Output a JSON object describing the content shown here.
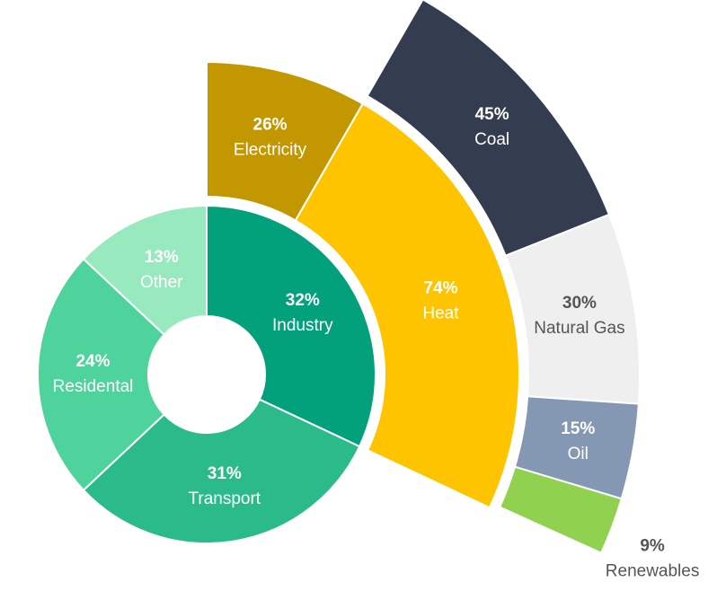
{
  "chart_data": {
    "type": "sunburst",
    "rings": [
      {
        "categories": [
          "Industry",
          "Transport",
          "Residental",
          "Other"
        ],
        "values": [
          32,
          31,
          24,
          13
        ],
        "value_labels": [
          "32%",
          "31%",
          "24%",
          "13%"
        ],
        "colors": [
          "#03a07c",
          "#2bbb8a",
          "#4fd39c",
          "#98e9bd"
        ],
        "label_colors": [
          "#ffffff",
          "#ffffff",
          "#ffffff",
          "#ffffff"
        ]
      },
      {
        "parent": "Industry",
        "categories": [
          "Electricity",
          "Heat"
        ],
        "values": [
          26,
          74
        ],
        "value_labels": [
          "26%",
          "74%"
        ],
        "colors": [
          "#c29700",
          "#ffc400"
        ],
        "label_colors": [
          "#ffffff",
          "#ffffff"
        ]
      },
      {
        "parent": "Heat",
        "categories": [
          "Coal",
          "Natural Gas",
          "Oil",
          "Renewables"
        ],
        "values": [
          45,
          30,
          15,
          9
        ],
        "value_labels": [
          "45%",
          "30%",
          "15%",
          "9%"
        ],
        "colors": [
          "#343d4f",
          "#efefef",
          "#8598b3",
          "#90d14f"
        ],
        "label_colors": [
          "#ffffff",
          "#555555",
          "#ffffff",
          "#555555"
        ]
      }
    ]
  }
}
